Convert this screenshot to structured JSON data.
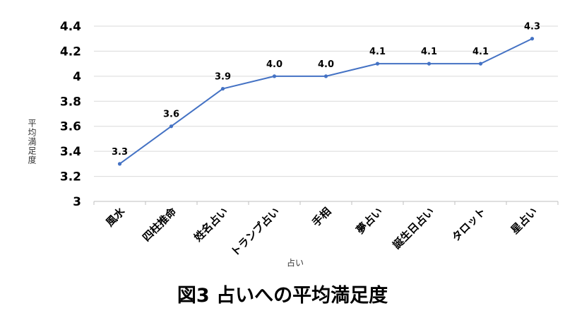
{
  "chart_data": {
    "type": "line",
    "title": "図3 占いへの平均満足度",
    "xlabel": "占い",
    "ylabel": "平均満足度",
    "categories": [
      "風水",
      "四柱推命",
      "姓名占い",
      "トランプ占い",
      "手相",
      "夢占い",
      "誕生日占い",
      "タロット",
      "星占い"
    ],
    "series": [
      {
        "values": [
          3.3,
          3.6,
          3.9,
          4.0,
          4.0,
          4.1,
          4.1,
          4.1,
          4.3
        ]
      }
    ],
    "data_labels": [
      "3.3",
      "3.6",
      "3.9",
      "4.0",
      "4.0",
      "4.1",
      "4.1",
      "4.1",
      "4.3"
    ],
    "ylim": [
      3,
      4.4
    ],
    "yticks": [
      "3",
      "3.2",
      "3.4",
      "3.6",
      "3.8",
      "4",
      "4.2",
      "4.4"
    ],
    "grid": true,
    "legend": "none",
    "line_color": "#4472C4",
    "grid_color": "#D9D9D9"
  }
}
